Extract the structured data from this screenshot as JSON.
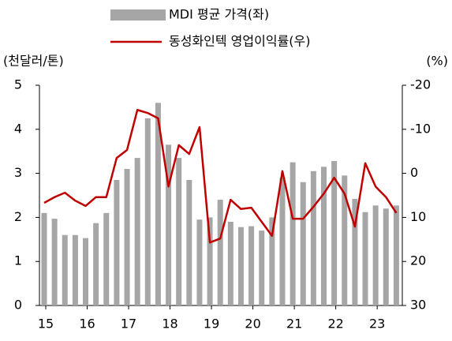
{
  "chart_data": {
    "type": "bar-line",
    "categories": [
      "15",
      null,
      null,
      null,
      "16",
      null,
      null,
      null,
      "17",
      null,
      null,
      null,
      "18",
      null,
      null,
      null,
      "19",
      null,
      null,
      null,
      "20",
      null,
      null,
      null,
      "21",
      null,
      null,
      null,
      "22",
      null,
      null,
      null,
      "23",
      null,
      null
    ],
    "series": [
      {
        "name": "MDI 평균 가격(좌)",
        "type": "bar",
        "color": "#a6a6a6",
        "values": [
          2.1,
          1.97,
          1.6,
          1.6,
          1.53,
          1.87,
          2.1,
          2.85,
          3.1,
          3.35,
          4.25,
          4.6,
          3.65,
          3.35,
          2.85,
          1.95,
          2.0,
          2.4,
          1.9,
          1.78,
          1.8,
          1.7,
          2.0,
          2.9,
          3.25,
          2.8,
          3.05,
          3.15,
          3.28,
          2.95,
          2.42,
          2.12,
          2.27,
          2.2,
          2.27
        ]
      },
      {
        "name": "동성화인텍 영업이익률(우)",
        "type": "line",
        "axis": "y2",
        "color": "#c00000",
        "values": [
          6.7,
          5.4,
          4.4,
          6.2,
          7.4,
          5.4,
          5.4,
          -3.5,
          -5.3,
          -14.4,
          -13.7,
          -12.5,
          3,
          -6.4,
          -4.4,
          -10.5,
          15.7,
          14.8,
          6,
          8.1,
          7.8,
          11,
          14.2,
          -0.5,
          10.3,
          10.3,
          7.6,
          4.6,
          1,
          4.6,
          12.1,
          -2.3,
          3,
          5.4,
          9
        ]
      }
    ],
    "ylabel": "(천달러/톤)",
    "y2label": "(%)",
    "ylim": [
      0,
      5
    ],
    "yticks": [
      0,
      1,
      2,
      3,
      4,
      5
    ],
    "y2lim": [
      30,
      -20
    ],
    "y2ticks": [
      -20,
      -10,
      0,
      10,
      20,
      30
    ]
  }
}
